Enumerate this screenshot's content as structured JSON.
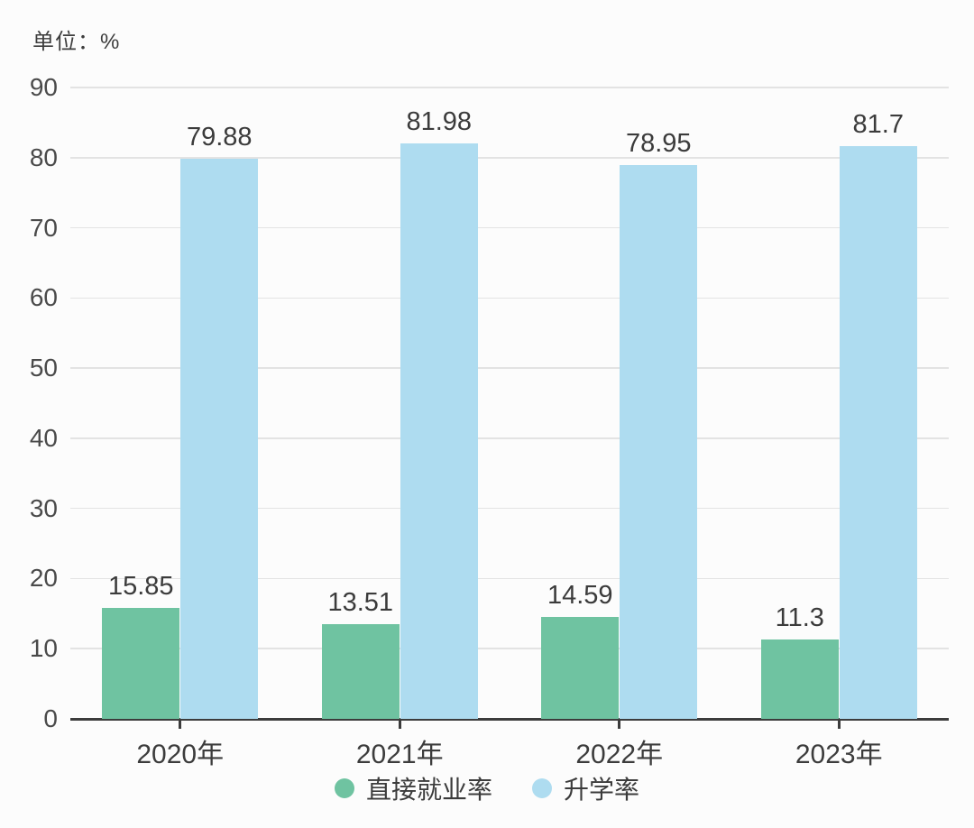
{
  "unit_label": "单位：%",
  "chart_data": {
    "type": "bar",
    "title": "",
    "xlabel": "",
    "ylabel": "单位：%",
    "categories": [
      "2020年",
      "2021年",
      "2022年",
      "2023年"
    ],
    "series": [
      {
        "name": "直接就业率",
        "slug": "direct-employment-rate",
        "color": "#6FC3A1",
        "values": [
          15.85,
          13.51,
          14.59,
          11.3
        ]
      },
      {
        "name": "升学率",
        "slug": "enrollment-rate",
        "color": "#AEDCF0",
        "values": [
          79.88,
          81.98,
          78.95,
          81.7
        ]
      }
    ],
    "ylim": [
      0,
      90
    ],
    "ytick_interval": 10,
    "grid": true,
    "legend_position": "bottom"
  },
  "style": {
    "background": "#FCFCFC",
    "grid_color": "#E3E3E3",
    "axis_color": "#3C3C3C",
    "value_label_color": "#3B3B3B",
    "tick_label_color": "#4A4A4A"
  }
}
